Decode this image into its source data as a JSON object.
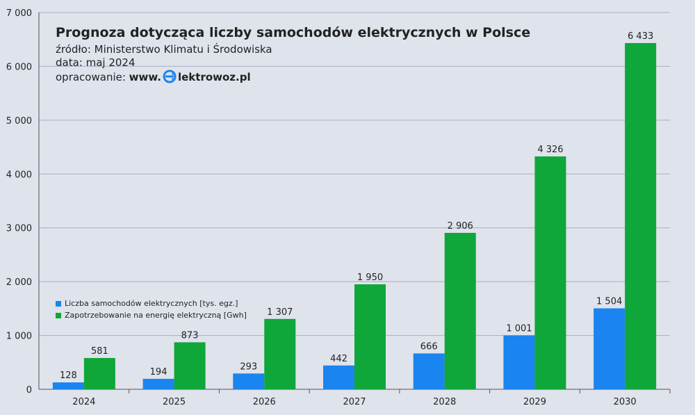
{
  "header": {
    "title": "Prognoza dotycząca liczby samochodów elektrycznych w Polsce",
    "source": "źródło: Ministerstwo Klimatu i Środowiska",
    "date": "data: maj 2024",
    "prepared_prefix": "opracowanie: ",
    "brand_prefix": "www.",
    "brand_suffix": "lektrowoz.pl",
    "brand_icon": "plug-e-icon"
  },
  "colors": {
    "background": "#dfe3ec",
    "grid": "#a9aec0",
    "series_cars": "#1a84f0",
    "series_energy": "#0fa63a",
    "text": "#222222",
    "brand": "#1a84f0"
  },
  "chart_data": {
    "type": "bar",
    "categories": [
      "2024",
      "2025",
      "2026",
      "2027",
      "2028",
      "2029",
      "2030"
    ],
    "series": [
      {
        "name": "Liczba samochodów elektrycznych [tys. egz.]",
        "values": [
          128,
          194,
          293,
          442,
          666,
          1001,
          1504
        ],
        "labels": [
          "128",
          "194",
          "293",
          "442",
          "666",
          "1 001",
          "1 504"
        ]
      },
      {
        "name": "Zapotrzebowanie na energię elektryczną [Gwh]",
        "values": [
          581,
          873,
          1307,
          1950,
          2906,
          4326,
          6433
        ],
        "labels": [
          "581",
          "873",
          "1 307",
          "1 950",
          "2 906",
          "4 326",
          "6 433"
        ]
      }
    ],
    "ylim": [
      0,
      7000
    ],
    "yticks": [
      0,
      1000,
      2000,
      3000,
      4000,
      5000,
      6000,
      7000
    ],
    "ytick_labels": [
      "0",
      "1 000",
      "2 000",
      "3 000",
      "4 000",
      "5 000",
      "6 000",
      "7 000"
    ],
    "grid": true,
    "legend_position": "middle-left",
    "title": "Prognoza dotycząca liczby samochodów elektrycznych w Polsce",
    "xlabel": "",
    "ylabel": ""
  }
}
